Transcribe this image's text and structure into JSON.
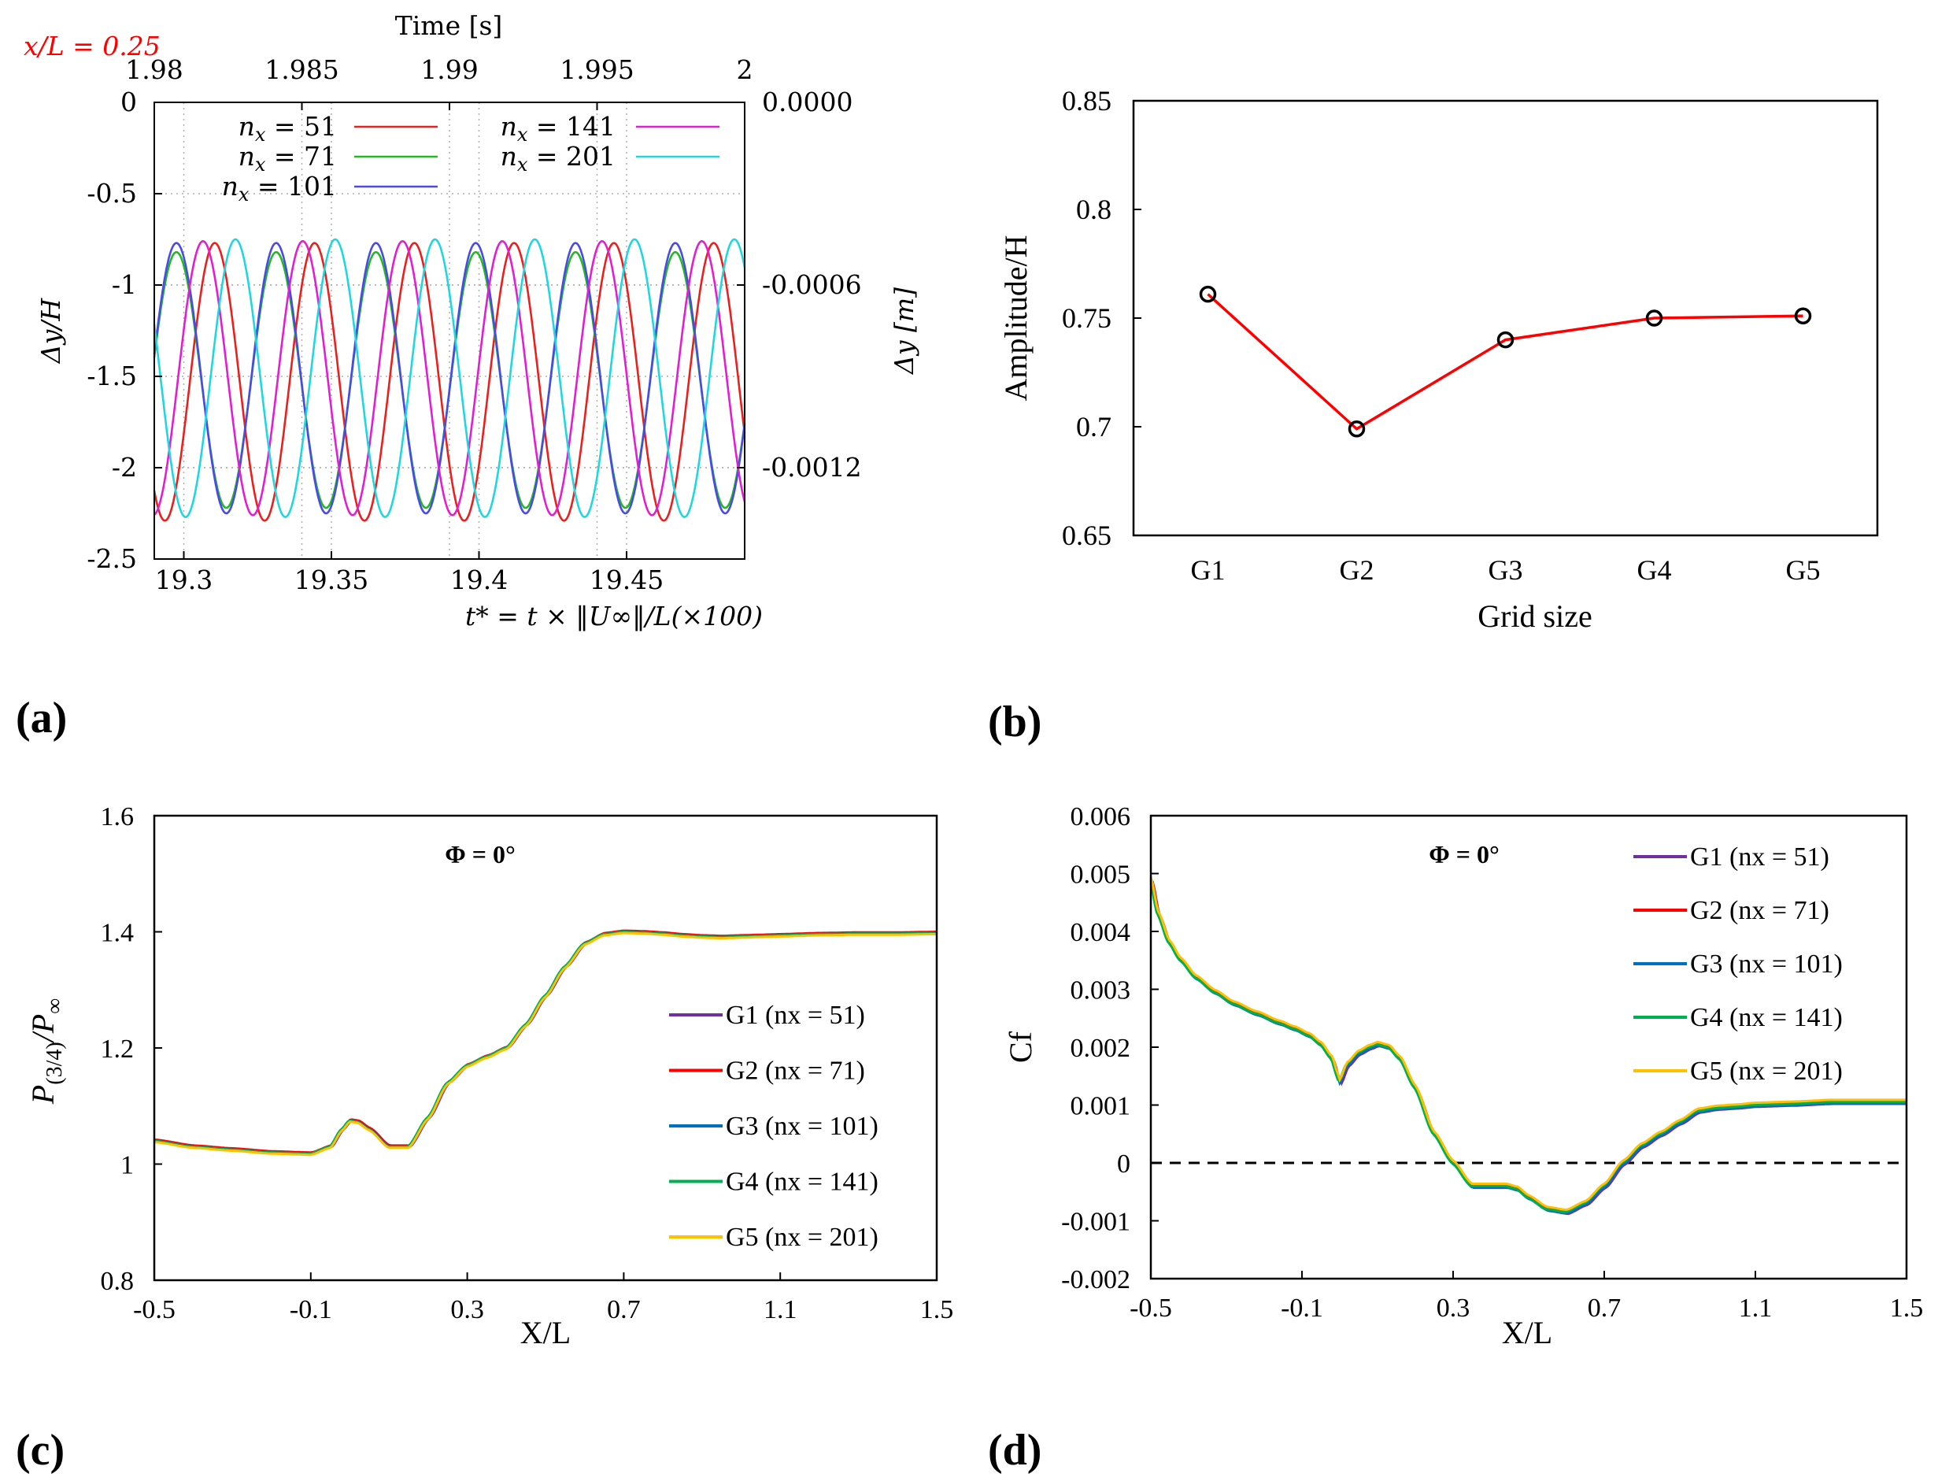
{
  "chart_data": [
    {
      "id": "a",
      "type": "line",
      "panel_label": "(a)",
      "annotation": "x/L = 0.25",
      "annotation_color": "#ff0000",
      "xlabel": "t* = t × ‖U∞‖/L(×100)",
      "ylabel": "Δy/H",
      "x2label": "Time [s]",
      "y2label": "Δy [m]",
      "xlim": [
        19.29,
        19.49
      ],
      "ylim": [
        -2.5,
        0
      ],
      "x2lim": [
        1.98,
        2.0
      ],
      "y2lim": [
        -0.0015,
        0
      ],
      "xticks": [
        "19.3",
        "19.35",
        "19.4",
        "19.45"
      ],
      "xtick_values": [
        19.3,
        19.35,
        19.4,
        19.45
      ],
      "yticks": [
        "0",
        "-0.5",
        "-1",
        "-1.5",
        "-2",
        "-2.5"
      ],
      "ytick_values": [
        0,
        -0.5,
        -1,
        -1.5,
        -2,
        -2.5
      ],
      "x2ticks": [
        "1.98",
        "1.985",
        "1.99",
        "1.995",
        "2"
      ],
      "x2tick_values": [
        1.98,
        1.985,
        1.99,
        1.995,
        2.0
      ],
      "y2ticks": [
        "0.0000",
        "-0.0006",
        "-0.0012"
      ],
      "y2tick_values": [
        0,
        -0.0006,
        -0.0012
      ],
      "grid": true,
      "series": [
        {
          "name": "n_x = 51",
          "label_var": "n",
          "label_sub": "x",
          "label_val": " = 51",
          "color": "#e8201e",
          "mean": -1.53,
          "amp": 0.76,
          "period": 0.0338,
          "phase": 19.3105
        },
        {
          "name": "n_x = 71",
          "label_var": "n",
          "label_sub": "x",
          "label_val": " = 71",
          "color": "#22b922",
          "mean": -1.52,
          "amp": 0.7,
          "period": 0.0338,
          "phase": 19.2975
        },
        {
          "name": "n_x = 101",
          "label_var": "n",
          "label_sub": "x",
          "label_val": " = 101",
          "color": "#4a4ae6",
          "mean": -1.51,
          "amp": 0.74,
          "period": 0.0338,
          "phase": 19.2975
        },
        {
          "name": "n_x = 141",
          "label_var": "n",
          "label_sub": "x",
          "label_val": " = 141",
          "color": "#e020d0",
          "mean": -1.51,
          "amp": 0.75,
          "period": 0.0338,
          "phase": 19.3065
        },
        {
          "name": "n_x = 201",
          "label_var": "n",
          "label_sub": "x",
          "label_val": " = 201",
          "color": "#22d6e0",
          "mean": -1.51,
          "amp": 0.76,
          "period": 0.0338,
          "phase": 19.3175
        }
      ]
    },
    {
      "id": "b",
      "type": "line",
      "panel_label": "(b)",
      "xlabel": "Grid size",
      "ylabel": "Amplitude/H",
      "categories": [
        "G1",
        "G2",
        "G3",
        "G4",
        "G5"
      ],
      "values": [
        0.761,
        0.699,
        0.74,
        0.75,
        0.751
      ],
      "ylim": [
        0.65,
        0.85
      ],
      "yticks": [
        "0.85",
        "0.8",
        "0.75",
        "0.7",
        "0.65"
      ],
      "ytick_values": [
        0.85,
        0.8,
        0.75,
        0.7,
        0.65
      ],
      "line_color": "#ff0000",
      "marker": "open-circle"
    },
    {
      "id": "c",
      "type": "line",
      "panel_label": "(c)",
      "title": "Φ = 0°",
      "xlabel": "X/L",
      "ylabel": "P(3/4)/P∞",
      "ylabel_parts": {
        "main": "P",
        "sub": "(3/4)",
        "mid": "/P",
        "sub2": "∞"
      },
      "xlim": [
        -0.5,
        1.5
      ],
      "ylim": [
        0.8,
        1.6
      ],
      "xticks": [
        "-0.5",
        "-0.1",
        "0.3",
        "0.7",
        "1.1",
        "1.5"
      ],
      "xtick_values": [
        -0.5,
        -0.1,
        0.3,
        0.7,
        1.1,
        1.5
      ],
      "yticks": [
        "1.6",
        "1.4",
        "1.2",
        "1",
        "0.8"
      ],
      "ytick_values": [
        1.6,
        1.4,
        1.2,
        1.0,
        0.8
      ],
      "base_curve": {
        "x": [
          -0.5,
          -0.4,
          -0.3,
          -0.2,
          -0.1,
          -0.05,
          -0.02,
          0.0,
          0.02,
          0.05,
          0.1,
          0.15,
          0.2,
          0.25,
          0.3,
          0.35,
          0.4,
          0.45,
          0.5,
          0.55,
          0.6,
          0.65,
          0.7,
          0.75,
          0.8,
          0.85,
          0.9,
          0.95,
          1.0,
          1.05,
          1.1,
          1.2,
          1.3,
          1.4,
          1.5
        ],
        "y": [
          1.04,
          1.03,
          1.025,
          1.02,
          1.018,
          1.03,
          1.06,
          1.075,
          1.073,
          1.06,
          1.03,
          1.03,
          1.08,
          1.14,
          1.17,
          1.185,
          1.2,
          1.24,
          1.29,
          1.34,
          1.38,
          1.396,
          1.4,
          1.399,
          1.397,
          1.394,
          1.392,
          1.391,
          1.392,
          1.393,
          1.394,
          1.396,
          1.397,
          1.397,
          1.398
        ]
      },
      "series": [
        {
          "name": "G1 (nx = 51)",
          "color": "#7030a0",
          "dx": 0.004,
          "dy": 0.0
        },
        {
          "name": "G2 (nx = 71)",
          "color": "#ff0000",
          "dx": 0.002,
          "dy": 0.002
        },
        {
          "name": "G3 (nx = 101)",
          "color": "#0070c0",
          "dx": 0.0,
          "dy": 0.0
        },
        {
          "name": "G4 (nx = 141)",
          "color": "#00b050",
          "dx": -0.002,
          "dy": 0.0
        },
        {
          "name": "G5 (nx = 201)",
          "color": "#ffc000",
          "dx": 0.0,
          "dy": -0.002
        }
      ]
    },
    {
      "id": "d",
      "type": "line",
      "panel_label": "(d)",
      "title": "Φ = 0°",
      "xlabel": "X/L",
      "ylabel": "Cf",
      "xlim": [
        -0.5,
        1.5
      ],
      "ylim": [
        -0.002,
        0.006
      ],
      "xticks": [
        "-0.5",
        "-0.1",
        "0.3",
        "0.7",
        "1.1",
        "1.5"
      ],
      "xtick_values": [
        -0.5,
        -0.1,
        0.3,
        0.7,
        1.1,
        1.5
      ],
      "yticks": [
        "0.006",
        "0.005",
        "0.004",
        "0.003",
        "0.002",
        "0.001",
        "0",
        "-0.001",
        "-0.002"
      ],
      "ytick_values": [
        0.006,
        0.005,
        0.004,
        0.003,
        0.002,
        0.001,
        0,
        -0.001,
        -0.002
      ],
      "reference_line": 0,
      "base_curve": {
        "x": [
          -0.5,
          -0.48,
          -0.45,
          -0.42,
          -0.38,
          -0.33,
          -0.28,
          -0.22,
          -0.16,
          -0.12,
          -0.08,
          -0.05,
          -0.02,
          -0.005,
          0.0,
          0.02,
          0.05,
          0.08,
          0.1,
          0.13,
          0.16,
          0.2,
          0.25,
          0.3,
          0.35,
          0.4,
          0.44,
          0.47,
          0.5,
          0.55,
          0.6,
          0.65,
          0.7,
          0.75,
          0.8,
          0.85,
          0.9,
          0.95,
          1.0,
          1.05,
          1.1,
          1.2,
          1.3,
          1.4,
          1.5
        ],
        "y": [
          0.0049,
          0.0043,
          0.0038,
          0.0035,
          0.0032,
          0.00295,
          0.00275,
          0.00258,
          0.00242,
          0.00232,
          0.0022,
          0.00205,
          0.0018,
          0.0015,
          0.0014,
          0.0017,
          0.0019,
          0.002,
          0.00205,
          0.002,
          0.0018,
          0.0013,
          0.0005,
          0.0,
          -0.0004,
          -0.0004,
          -0.0004,
          -0.00045,
          -0.0006,
          -0.0008,
          -0.00085,
          -0.0007,
          -0.0004,
          0.0,
          0.0003,
          0.0005,
          0.0007,
          0.0009,
          0.00095,
          0.00097,
          0.001,
          0.00102,
          0.00105,
          0.00105,
          0.00105
        ]
      },
      "series": [
        {
          "name": "G1 (nx = 51)",
          "color": "#7030a0",
          "dx": 0.004,
          "dy": -3e-05
        },
        {
          "name": "G2 (nx = 71)",
          "color": "#ff0000",
          "dx": 0.002,
          "dy": 0.0
        },
        {
          "name": "G3 (nx = 101)",
          "color": "#0070c0",
          "dx": 0.0,
          "dy": -2e-05
        },
        {
          "name": "G4 (nx = 141)",
          "color": "#00b050",
          "dx": -0.003,
          "dy": 0.0
        },
        {
          "name": "G5 (nx = 201)",
          "color": "#ffc000",
          "dx": 0.0,
          "dy": 4e-05
        }
      ]
    }
  ]
}
